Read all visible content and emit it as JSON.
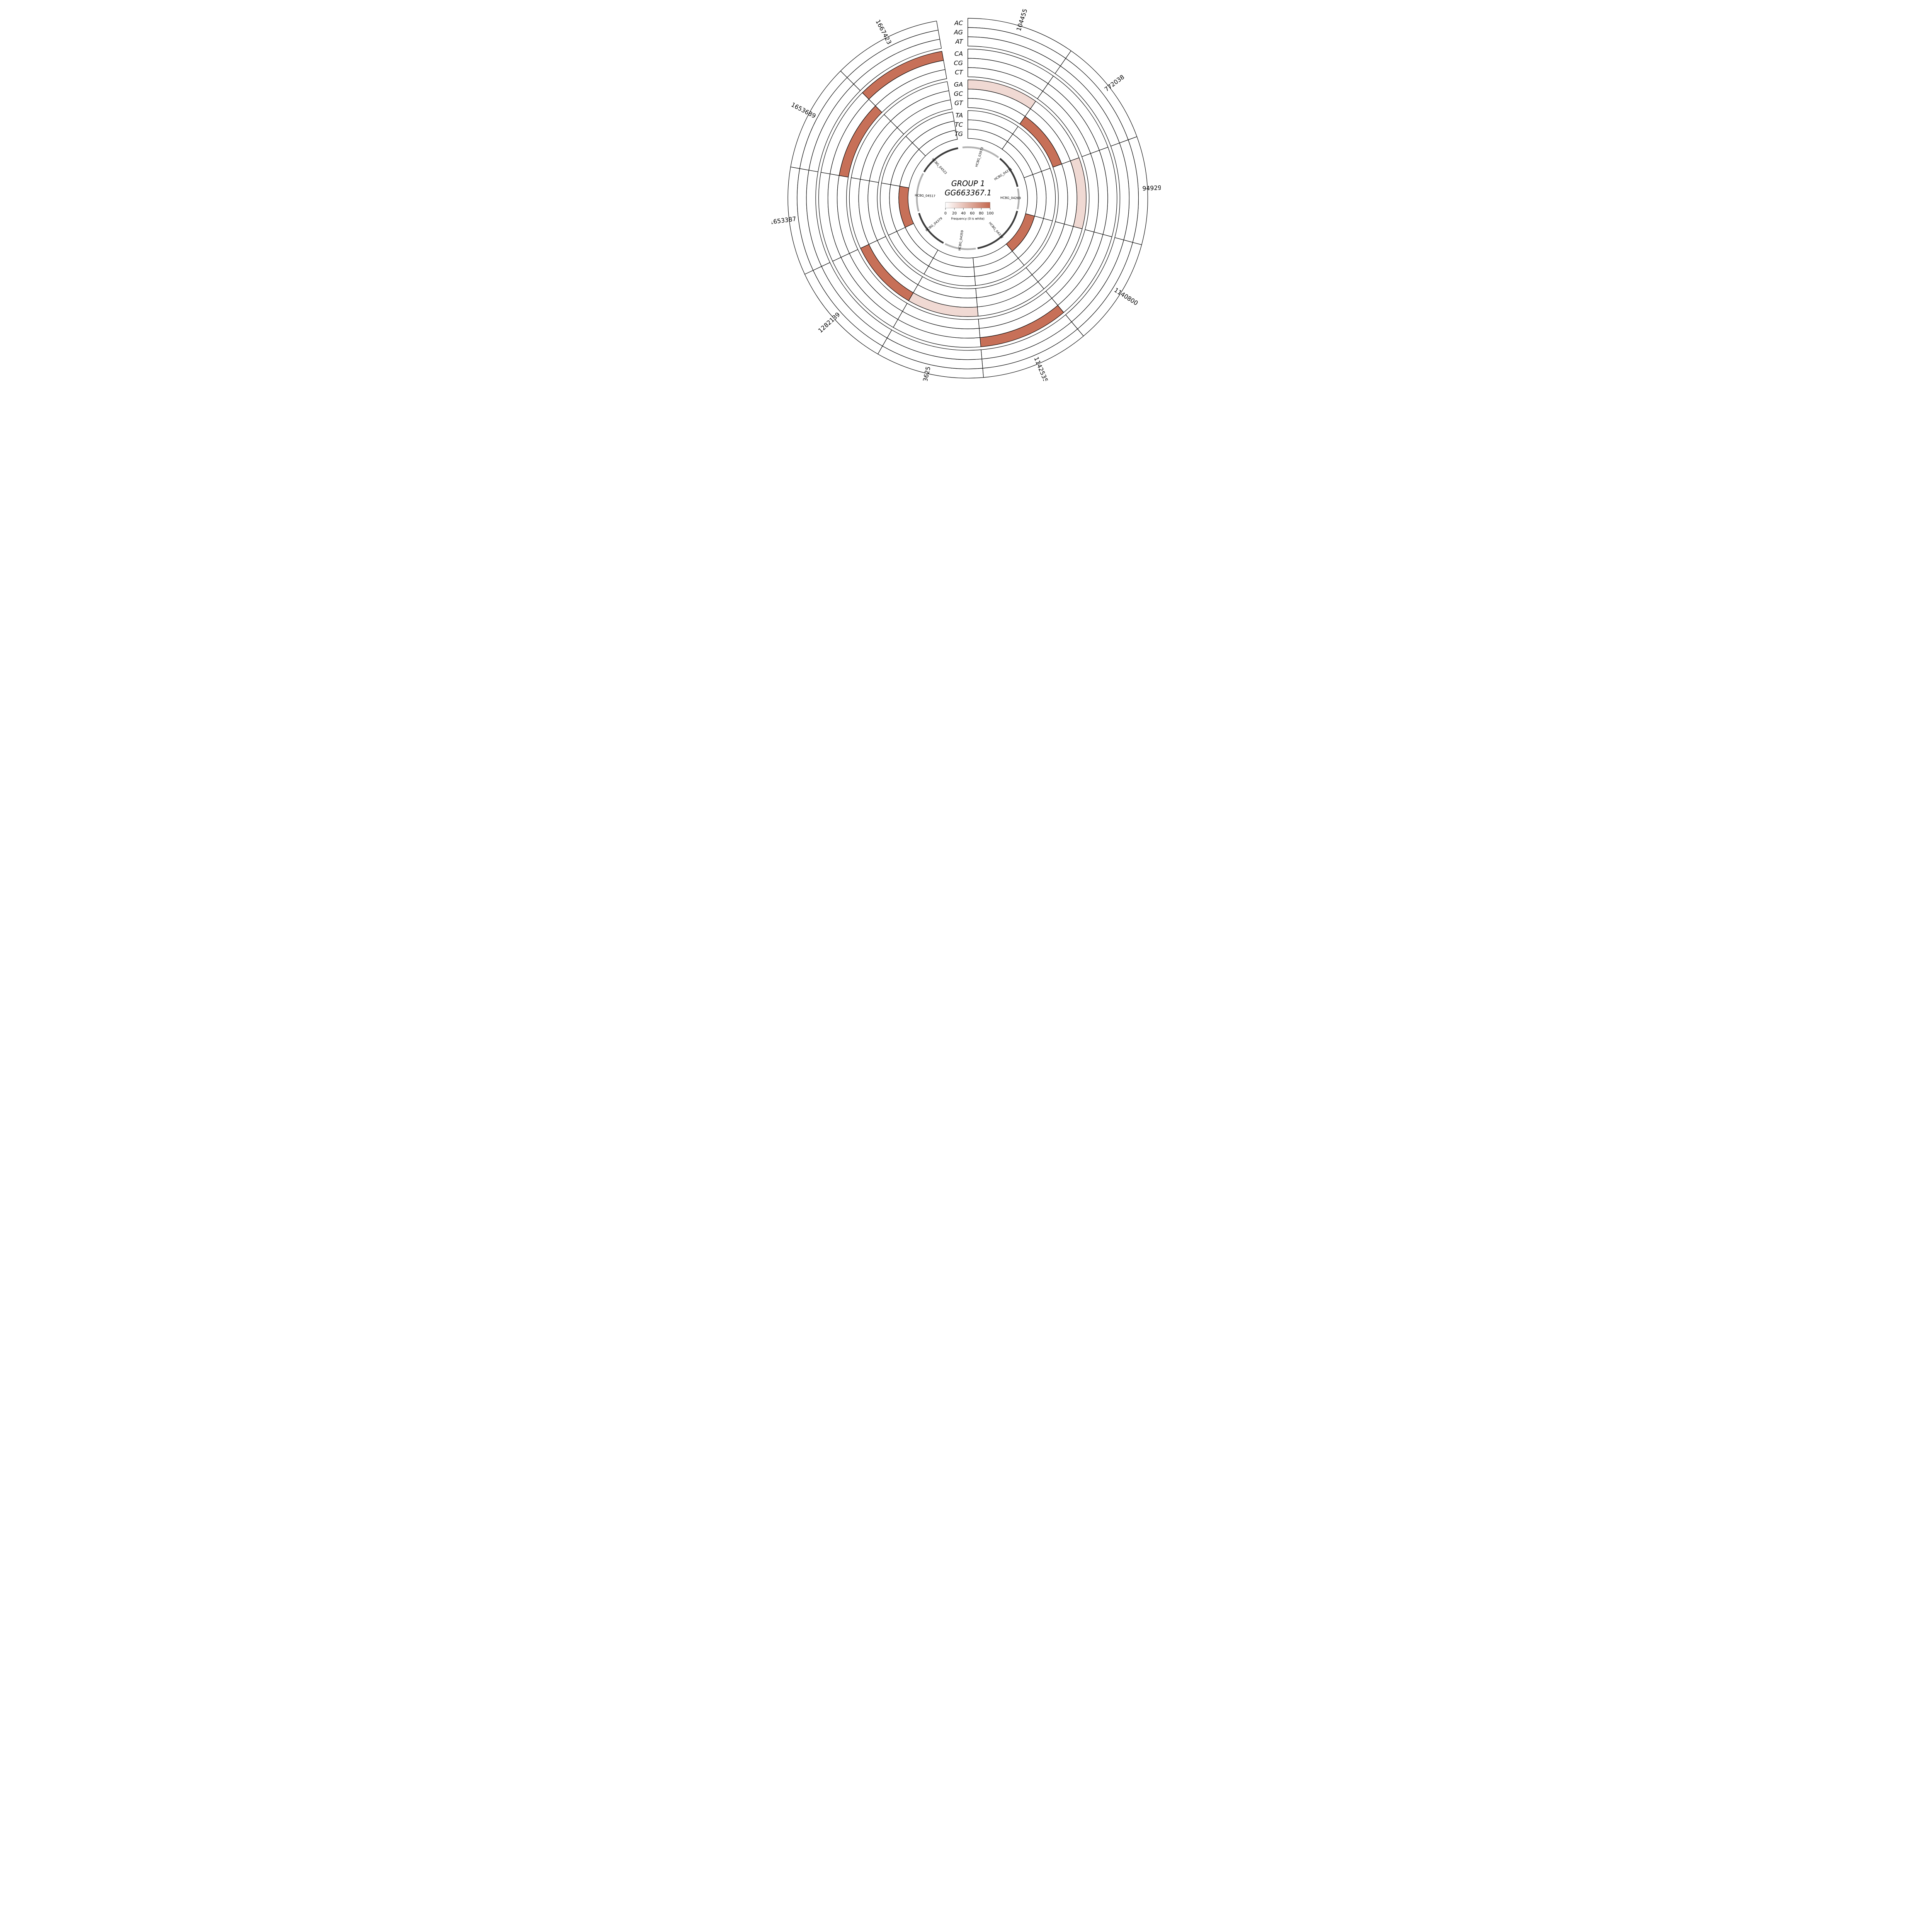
{
  "title": {
    "line1": "GROUP 1",
    "line2": "GG663367.1"
  },
  "legend": {
    "ticks": [
      "0",
      "20",
      "40",
      "60",
      "80",
      "100"
    ],
    "caption": "Frequency (0 is white)",
    "gradient_start": "#ffffff",
    "gradient_end": "#c4684f"
  },
  "chart_data": {
    "type": "heatmap",
    "subtype": "circular-sector-ring-heatmap",
    "rings_outer_to_inner": [
      "AC",
      "AG",
      "AT",
      "CA",
      "CG",
      "CT",
      "GA",
      "GC",
      "GT",
      "TA",
      "TC",
      "TG"
    ],
    "ring_groups": [
      [
        "AC",
        "AG",
        "AT"
      ],
      [
        "CA",
        "CG",
        "CT"
      ],
      [
        "GA",
        "GC",
        "GT"
      ],
      [
        "TA",
        "TC",
        "TG"
      ]
    ],
    "sector_span_deg": 35,
    "angular_gap_deg": [
      350,
      360
    ],
    "value_range": [
      0,
      100
    ],
    "zero_is_white": true,
    "max_color": "#c4684f",
    "sectors": [
      {
        "label": "104455",
        "colored_ring": "GA",
        "frequency": 25
      },
      {
        "label": "772038",
        "colored_ring": "GT",
        "frequency": 95
      },
      {
        "label": "949299",
        "colored_ring": "GA",
        "frequency": 25
      },
      {
        "label": "1140800",
        "colored_ring": "TG",
        "frequency": 95
      },
      {
        "label": "1142535",
        "colored_ring": "CA",
        "frequency": 95
      },
      {
        "label": "1223625",
        "colored_ring": "GA",
        "frequency": 25
      },
      {
        "label": "1282139",
        "colored_ring": "GA",
        "frequency": 95
      },
      {
        "label": "1653387",
        "colored_ring": "TG",
        "frequency": 95
      },
      {
        "label": "1653689",
        "colored_ring": "CT",
        "frequency": 95
      },
      {
        "label": "1667423",
        "colored_ring": "CA",
        "frequency": 95
      }
    ],
    "genes": [
      {
        "name": "HCBG_03973",
        "start_deg": 354.0,
        "end_deg": 397.0,
        "shade": "light",
        "label_deg": 17
      },
      {
        "name": "HCBG_04211",
        "start_deg": 39.0,
        "end_deg": 77.0,
        "shade": "dark",
        "label_deg": 57
      },
      {
        "name": "HCBG_04269",
        "start_deg": 79.0,
        "end_deg": 102.5,
        "shade": "light",
        "label_deg": 91
      },
      {
        "name": "HCBG_04332",
        "start_deg": 104.5,
        "end_deg": 169.0,
        "shade": "dark",
        "label_deg": 140
      },
      {
        "name": "HCBG_04359",
        "start_deg": 171.0,
        "end_deg": 206.5,
        "shade": "light",
        "label_deg": 188
      },
      {
        "name": "HCBG_04379",
        "start_deg": 208.5,
        "end_deg": 253.0,
        "shade": "dark",
        "label_deg": 231
      },
      {
        "name": "HCBG_04517",
        "start_deg": 255.0,
        "end_deg": 299.0,
        "shade": "light",
        "label_deg": 272
      },
      {
        "name": "HCBG_04522",
        "start_deg": 301.0,
        "end_deg": 349.0,
        "shade": "dark",
        "label_deg": 317
      }
    ],
    "gene_shade_colors": {
      "light": "#b3b3b3",
      "dark": "#3d3d3d"
    }
  }
}
